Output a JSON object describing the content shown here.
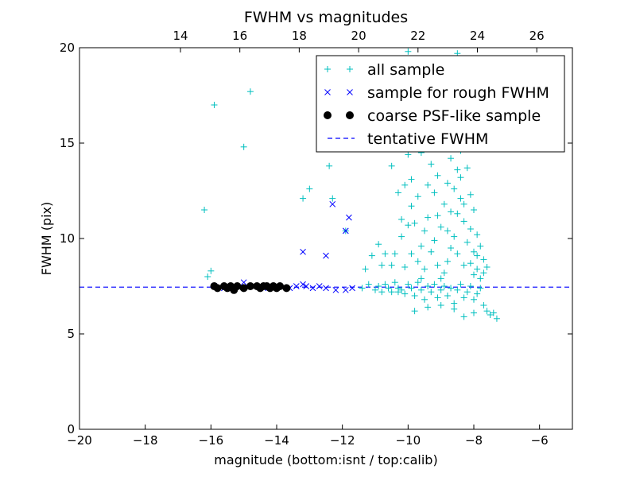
{
  "chart_data": {
    "type": "scatter",
    "title": "FWHM vs magnitudes",
    "xlabel": "magnitude (bottom:isnt / top:calib)",
    "ylabel": "FWHM (pix)",
    "xlim": [
      -20,
      -5
    ],
    "ylim": [
      0,
      20
    ],
    "top_xlim": [
      10.6,
      27.2
    ],
    "x_ticks": [
      -20,
      -18,
      -16,
      -14,
      -12,
      -10,
      -8,
      -6
    ],
    "x_tick_labels": [
      "−20",
      "−18",
      "−16",
      "−14",
      "−12",
      "−10",
      "−8",
      "−6"
    ],
    "y_ticks": [
      0,
      5,
      10,
      15,
      20
    ],
    "y_tick_labels": [
      "0",
      "5",
      "10",
      "15",
      "20"
    ],
    "top_ticks": [
      14,
      16,
      18,
      20,
      22,
      24,
      26
    ],
    "top_tick_labels": [
      "14",
      "16",
      "18",
      "20",
      "22",
      "24",
      "26"
    ],
    "grid": false,
    "legend_position": "top-right",
    "series": [
      {
        "name": "all sample",
        "marker": "plus",
        "color": "#00bfbf",
        "points": [
          [
            -16.2,
            11.5
          ],
          [
            -15.9,
            17.0
          ],
          [
            -15.0,
            14.8
          ],
          [
            -14.8,
            17.7
          ],
          [
            -16.1,
            8.0
          ],
          [
            -16.0,
            8.3
          ],
          [
            -13.0,
            12.6
          ],
          [
            -13.2,
            12.1
          ],
          [
            -12.4,
            13.8
          ],
          [
            -12.3,
            12.1
          ],
          [
            -11.9,
            10.4
          ],
          [
            -11.4,
            7.4
          ],
          [
            -11.2,
            7.6
          ],
          [
            -11.0,
            7.3
          ],
          [
            -10.9,
            7.5
          ],
          [
            -10.8,
            7.2
          ],
          [
            -10.7,
            7.6
          ],
          [
            -10.6,
            7.4
          ],
          [
            -10.5,
            7.2
          ],
          [
            -10.4,
            7.7
          ],
          [
            -10.3,
            7.4
          ],
          [
            -10.2,
            7.3
          ],
          [
            -10.1,
            7.1
          ],
          [
            -10.0,
            7.6
          ],
          [
            -9.9,
            7.4
          ],
          [
            -9.8,
            7.0
          ],
          [
            -9.7,
            7.7
          ],
          [
            -9.6,
            7.3
          ],
          [
            -9.5,
            6.8
          ],
          [
            -9.4,
            7.5
          ],
          [
            -9.3,
            7.2
          ],
          [
            -9.2,
            7.6
          ],
          [
            -9.1,
            6.9
          ],
          [
            -9.0,
            7.3
          ],
          [
            -8.9,
            7.5
          ],
          [
            -8.8,
            7.0
          ],
          [
            -8.7,
            7.4
          ],
          [
            -8.6,
            6.6
          ],
          [
            -8.5,
            7.3
          ],
          [
            -8.4,
            7.6
          ],
          [
            -8.3,
            6.9
          ],
          [
            -8.2,
            7.2
          ],
          [
            -8.1,
            7.5
          ],
          [
            -8.0,
            6.8
          ],
          [
            -7.9,
            7.1
          ],
          [
            -7.8,
            7.4
          ],
          [
            -7.7,
            6.5
          ],
          [
            -7.6,
            6.2
          ],
          [
            -7.5,
            6.0
          ],
          [
            -7.3,
            5.8
          ],
          [
            -7.4,
            6.1
          ],
          [
            -8.0,
            6.1
          ],
          [
            -8.3,
            5.9
          ],
          [
            -8.6,
            6.3
          ],
          [
            -9.0,
            6.5
          ],
          [
            -9.4,
            6.4
          ],
          [
            -9.8,
            6.2
          ],
          [
            -10.3,
            7.2
          ],
          [
            -10.5,
            8.6
          ],
          [
            -10.4,
            9.2
          ],
          [
            -10.2,
            11.0
          ],
          [
            -10.3,
            12.4
          ],
          [
            -10.5,
            13.8
          ],
          [
            -10.0,
            14.4
          ],
          [
            -10.4,
            15.1
          ],
          [
            -9.9,
            13.1
          ],
          [
            -9.7,
            12.2
          ],
          [
            -9.8,
            10.8
          ],
          [
            -9.6,
            9.6
          ],
          [
            -9.9,
            9.2
          ],
          [
            -10.1,
            8.5
          ],
          [
            -10.7,
            9.2
          ],
          [
            -10.8,
            8.6
          ],
          [
            -10.9,
            9.7
          ],
          [
            -11.1,
            9.1
          ],
          [
            -11.3,
            8.4
          ],
          [
            -9.4,
            11.1
          ],
          [
            -9.2,
            12.4
          ],
          [
            -9.1,
            13.3
          ],
          [
            -9.3,
            9.3
          ],
          [
            -9.0,
            10.6
          ],
          [
            -8.9,
            11.8
          ],
          [
            -8.8,
            12.9
          ],
          [
            -8.7,
            14.2
          ],
          [
            -8.6,
            15.1
          ],
          [
            -8.5,
            13.6
          ],
          [
            -8.4,
            12.1
          ],
          [
            -8.3,
            10.9
          ],
          [
            -8.2,
            9.8
          ],
          [
            -8.1,
            8.7
          ],
          [
            -8.0,
            9.3
          ],
          [
            -7.9,
            8.4
          ],
          [
            -7.8,
            7.9
          ],
          [
            -7.7,
            8.2
          ],
          [
            -8.5,
            11.3
          ],
          [
            -8.6,
            10.1
          ],
          [
            -8.7,
            9.5
          ],
          [
            -8.8,
            8.8
          ],
          [
            -8.9,
            8.2
          ],
          [
            -9.0,
            7.9
          ],
          [
            -9.1,
            8.6
          ],
          [
            -9.2,
            9.9
          ],
          [
            -9.5,
            8.4
          ],
          [
            -9.6,
            7.9
          ],
          [
            -9.7,
            8.8
          ],
          [
            -9.5,
            10.4
          ],
          [
            -8.4,
            14.6
          ],
          [
            -8.3,
            16.2
          ],
          [
            -8.2,
            15.4
          ],
          [
            -8.5,
            16.8
          ],
          [
            -8.6,
            17.9
          ],
          [
            -8.4,
            18.6
          ],
          [
            -8.5,
            19.7
          ],
          [
            -8.7,
            19.3
          ],
          [
            -9.0,
            16.5
          ],
          [
            -9.2,
            15.6
          ],
          [
            -9.8,
            15.9
          ],
          [
            -10.0,
            19.8
          ],
          [
            -9.7,
            17.3
          ],
          [
            -8.1,
            12.3
          ],
          [
            -8.0,
            11.5
          ],
          [
            -7.9,
            10.2
          ],
          [
            -7.8,
            9.6
          ],
          [
            -7.7,
            8.9
          ],
          [
            -7.6,
            8.5
          ],
          [
            -8.8,
            10.4
          ],
          [
            -8.6,
            12.6
          ],
          [
            -8.4,
            13.2
          ],
          [
            -8.3,
            11.8
          ],
          [
            -8.2,
            13.7
          ],
          [
            -8.9,
            14.9
          ],
          [
            -9.3,
            13.9
          ],
          [
            -9.6,
            14.5
          ],
          [
            -9.9,
            11.7
          ],
          [
            -10.1,
            12.8
          ],
          [
            -10.2,
            10.1
          ],
          [
            -10.0,
            10.7
          ],
          [
            -9.4,
            12.8
          ],
          [
            -9.1,
            11.2
          ],
          [
            -8.7,
            11.4
          ],
          [
            -8.5,
            9.2
          ],
          [
            -8.3,
            8.6
          ],
          [
            -8.1,
            10.5
          ],
          [
            -8.0,
            8.1
          ],
          [
            -7.9,
            9.1
          ]
        ]
      },
      {
        "name": "sample for rough FWHM",
        "marker": "x",
        "color": "#0000ff",
        "points": [
          [
            -15.9,
            7.5
          ],
          [
            -15.6,
            7.4
          ],
          [
            -15.3,
            7.5
          ],
          [
            -15.0,
            7.7
          ],
          [
            -14.7,
            7.5
          ],
          [
            -14.4,
            7.4
          ],
          [
            -14.0,
            7.5
          ],
          [
            -13.6,
            7.4
          ],
          [
            -13.4,
            7.5
          ],
          [
            -13.2,
            7.6
          ],
          [
            -13.1,
            7.5
          ],
          [
            -12.9,
            7.4
          ],
          [
            -12.7,
            7.5
          ],
          [
            -12.5,
            7.4
          ],
          [
            -12.2,
            7.3
          ],
          [
            -11.9,
            7.3
          ],
          [
            -11.7,
            7.4
          ],
          [
            -13.2,
            9.3
          ],
          [
            -12.5,
            9.1
          ],
          [
            -12.3,
            11.8
          ],
          [
            -11.8,
            11.1
          ],
          [
            -11.9,
            10.4
          ]
        ]
      },
      {
        "name": "coarse PSF-like sample",
        "marker": "circle",
        "color": "#000000",
        "points": [
          [
            -15.9,
            7.5
          ],
          [
            -15.8,
            7.4
          ],
          [
            -15.6,
            7.5
          ],
          [
            -15.5,
            7.4
          ],
          [
            -15.4,
            7.5
          ],
          [
            -15.3,
            7.3
          ],
          [
            -15.2,
            7.5
          ],
          [
            -15.0,
            7.4
          ],
          [
            -14.8,
            7.5
          ],
          [
            -14.6,
            7.5
          ],
          [
            -14.5,
            7.4
          ],
          [
            -14.4,
            7.5
          ],
          [
            -14.3,
            7.5
          ],
          [
            -14.2,
            7.4
          ],
          [
            -14.1,
            7.5
          ],
          [
            -14.0,
            7.4
          ],
          [
            -13.9,
            7.5
          ],
          [
            -13.7,
            7.4
          ]
        ]
      },
      {
        "name": "tentative FWHM",
        "marker": "dashed-line",
        "color": "#0000ff",
        "y": 7.45
      }
    ]
  }
}
